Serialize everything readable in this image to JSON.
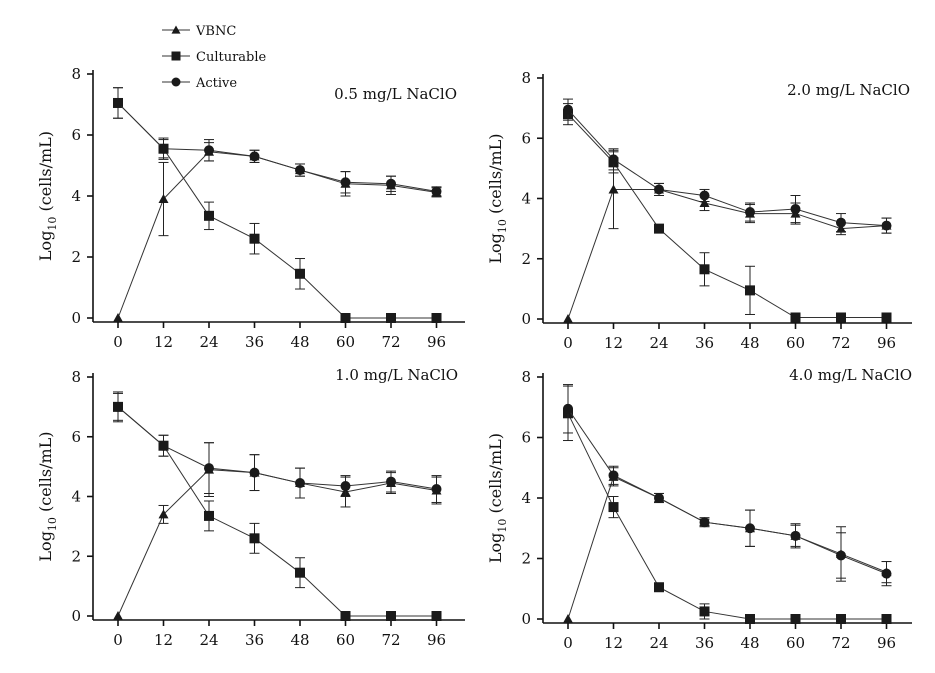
{
  "chart_data": {
    "type": "line",
    "title": "",
    "legend": {
      "position": "top-left",
      "entries": [
        {
          "name": "VBNC",
          "marker": "triangle"
        },
        {
          "name": "Culturable",
          "marker": "square"
        },
        {
          "name": "Active",
          "marker": "circle"
        }
      ]
    },
    "xlabel": "",
    "ylabel_prefix": "Log",
    "ylabel_sub": "10",
    "ylabel_suffix": " (cells/mL)",
    "x": [
      0,
      12,
      24,
      36,
      48,
      60,
      72,
      96
    ],
    "x_ticks": [
      "0",
      "12",
      "24",
      "36",
      "48",
      "60",
      "72",
      "96"
    ],
    "y_ticks": [
      "0",
      "2",
      "4",
      "6",
      "8"
    ],
    "ylim": [
      0,
      8
    ],
    "colors": {
      "axis": "#111111",
      "marker": "#1a1a1a",
      "line": "#333333"
    },
    "panels": [
      {
        "title": "0.5 mg/L NaClO",
        "series": [
          {
            "name": "VBNC",
            "values": [
              0.0,
              3.9,
              5.45,
              5.3,
              4.85,
              4.4,
              4.35,
              4.12
            ],
            "errors": [
              0,
              1.2,
              0.3,
              0.2,
              0.2,
              0.4,
              0.3,
              0.15
            ]
          },
          {
            "name": "Culturable",
            "values": [
              7.05,
              5.55,
              3.35,
              2.6,
              1.45,
              0.0,
              0.0,
              0.0
            ],
            "errors": [
              0.5,
              0.35,
              0.45,
              0.5,
              0.5,
              0,
              0,
              0
            ]
          },
          {
            "name": "Active",
            "values": [
              7.05,
              5.55,
              5.5,
              5.3,
              4.85,
              4.45,
              4.4,
              4.15
            ],
            "errors": [
              0.5,
              0.3,
              0.35,
              0.2,
              0.2,
              0.35,
              0.25,
              0.15
            ]
          }
        ]
      },
      {
        "title": "2.0 mg/L NaClO",
        "series": [
          {
            "name": "VBNC",
            "values": [
              0.0,
              4.3,
              4.3,
              3.85,
              3.5,
              3.5,
              3.0,
              3.1
            ],
            "errors": [
              0,
              1.3,
              0.2,
              0.25,
              0.3,
              0.35,
              0.2,
              0.25
            ]
          },
          {
            "name": "Culturable",
            "values": [
              6.8,
              5.2,
              3.0,
              1.65,
              0.95,
              0.05,
              0.05,
              0.05
            ],
            "errors": [
              0.35,
              0.35,
              0.1,
              0.55,
              0.8,
              0,
              0,
              0
            ]
          },
          {
            "name": "Active",
            "values": [
              6.95,
              5.3,
              4.3,
              4.1,
              3.55,
              3.65,
              3.2,
              3.1
            ],
            "errors": [
              0.35,
              0.35,
              0.2,
              0.2,
              0.3,
              0.45,
              0.3,
              0.25
            ]
          }
        ]
      },
      {
        "title": "1.0 mg/L NaClO",
        "series": [
          {
            "name": "VBNC",
            "values": [
              0.0,
              3.4,
              4.9,
              4.8,
              4.45,
              4.15,
              4.45,
              4.2
            ],
            "errors": [
              0,
              0.3,
              0.9,
              0.6,
              0.5,
              0.5,
              0.35,
              0.45
            ]
          },
          {
            "name": "Culturable",
            "values": [
              7.0,
              5.7,
              3.35,
              2.6,
              1.45,
              0.0,
              0.0,
              0.0
            ],
            "errors": [
              0.45,
              0.35,
              0.5,
              0.5,
              0.5,
              0,
              0,
              0
            ]
          },
          {
            "name": "Active",
            "values": [
              7.0,
              5.7,
              4.95,
              4.8,
              4.45,
              4.35,
              4.5,
              4.25
            ],
            "errors": [
              0.5,
              0.35,
              0.85,
              0.6,
              0.5,
              0.35,
              0.35,
              0.45
            ]
          }
        ]
      },
      {
        "title": "4.0 mg/L NaClO",
        "series": [
          {
            "name": "VBNC",
            "values": [
              0.0,
              4.7,
              4.0,
              3.2,
              3.0,
              2.75,
              2.15,
              1.55
            ],
            "errors": [
              0,
              0.3,
              0.15,
              0.15,
              0.6,
              0.4,
              0.9,
              0.35
            ]
          },
          {
            "name": "Culturable",
            "values": [
              6.8,
              3.7,
              1.05,
              0.25,
              0.0,
              0.0,
              0.0,
              0.0
            ],
            "errors": [
              0.9,
              0.35,
              0.1,
              0.25,
              0,
              0,
              0,
              0
            ]
          },
          {
            "name": "Active",
            "values": [
              6.95,
              4.75,
              4.0,
              3.2,
              3.0,
              2.75,
              2.1,
              1.5
            ],
            "errors": [
              0.8,
              0.3,
              0.15,
              0.1,
              0.6,
              0.35,
              0.75,
              0.4
            ]
          }
        ]
      }
    ]
  }
}
